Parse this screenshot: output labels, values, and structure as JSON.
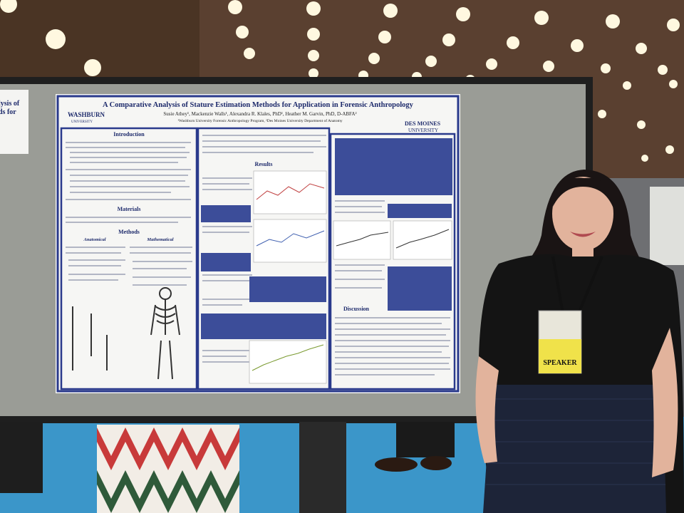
{
  "poster": {
    "title": "A Comparative Analysis of Stature Estimation Methods for Application in Forensic Anthropology",
    "authors": "Susie Athey¹, Mackenzie Walls¹, Alexandra R. Klales, PhD¹, Heather M. Garvin, PhD, D-ABFA²",
    "affiliations": "¹Washburn University Forensic Anthropology Program, ²Des Moines University Department of Anatomy",
    "logo_left": "WASHBURN",
    "logo_left_sub": "UNIVERSITY",
    "logo_right": "DES MOINES",
    "logo_right_sub": "UNIVERSITY",
    "sections": [
      "Introduction",
      "Materials",
      "Methods",
      "Anatomical",
      "Mathematical",
      "Results",
      "Discussion"
    ]
  },
  "neighbor_poster": {
    "line1": "lysis of",
    "line2": "ds for"
  },
  "badge": {
    "ribbon": "SPEAKER"
  }
}
